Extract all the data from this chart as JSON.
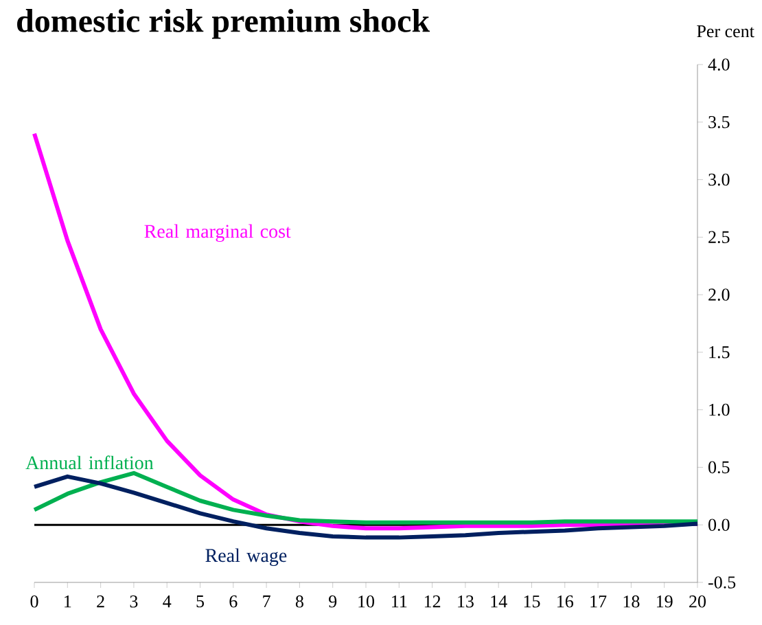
{
  "chart_data": {
    "type": "line",
    "title": "domestic risk premium shock",
    "ylabel": "Per cent",
    "x": [
      0,
      1,
      2,
      3,
      4,
      5,
      6,
      7,
      8,
      9,
      10,
      11,
      12,
      13,
      14,
      15,
      16,
      17,
      18,
      19,
      20
    ],
    "series": [
      {
        "name": "Real marginal cost",
        "color": "#ff00ff",
        "values": [
          3.4,
          2.47,
          1.7,
          1.14,
          0.73,
          0.43,
          0.22,
          0.09,
          0.03,
          -0.01,
          -0.03,
          -0.03,
          -0.02,
          -0.01,
          -0.01,
          -0.01,
          0.0,
          0.0,
          0.0,
          0.0,
          0.01
        ]
      },
      {
        "name": "Annual inflation",
        "color": "#00b050",
        "values": [
          0.13,
          0.27,
          0.37,
          0.45,
          0.33,
          0.21,
          0.13,
          0.08,
          0.04,
          0.03,
          0.02,
          0.02,
          0.02,
          0.02,
          0.02,
          0.02,
          0.03,
          0.03,
          0.03,
          0.03,
          0.03
        ]
      },
      {
        "name": "Real wage",
        "color": "#002060",
        "values": [
          0.33,
          0.42,
          0.36,
          0.28,
          0.19,
          0.1,
          0.03,
          -0.03,
          -0.07,
          -0.1,
          -0.11,
          -0.11,
          -0.1,
          -0.09,
          -0.07,
          -0.06,
          -0.05,
          -0.03,
          -0.02,
          -0.01,
          0.01
        ]
      }
    ],
    "xlim": [
      0,
      20
    ],
    "xticks": [
      0,
      1,
      2,
      3,
      4,
      5,
      6,
      7,
      8,
      9,
      10,
      11,
      12,
      13,
      14,
      15,
      16,
      17,
      18,
      19,
      20
    ],
    "ylim": [
      -0.5,
      4.0
    ],
    "yticks": [
      {
        "value": -0.5,
        "label": "-0.5"
      },
      {
        "value": 0,
        "label": "0.0"
      },
      {
        "value": 0.5,
        "label": "0.5"
      },
      {
        "value": 1,
        "label": "1.0"
      },
      {
        "value": 1.5,
        "label": "1.5"
      },
      {
        "value": 2,
        "label": "2.0"
      },
      {
        "value": 2.5,
        "label": "2.5"
      },
      {
        "value": 3,
        "label": "3.0"
      },
      {
        "value": 3.5,
        "label": "3.5"
      },
      {
        "value": 4,
        "label": "4.0"
      }
    ],
    "ref_lines": [
      {
        "axis": "y",
        "value": 0,
        "color": "#000000"
      }
    ],
    "grid": false,
    "marker": "none",
    "line_style": "solid"
  }
}
